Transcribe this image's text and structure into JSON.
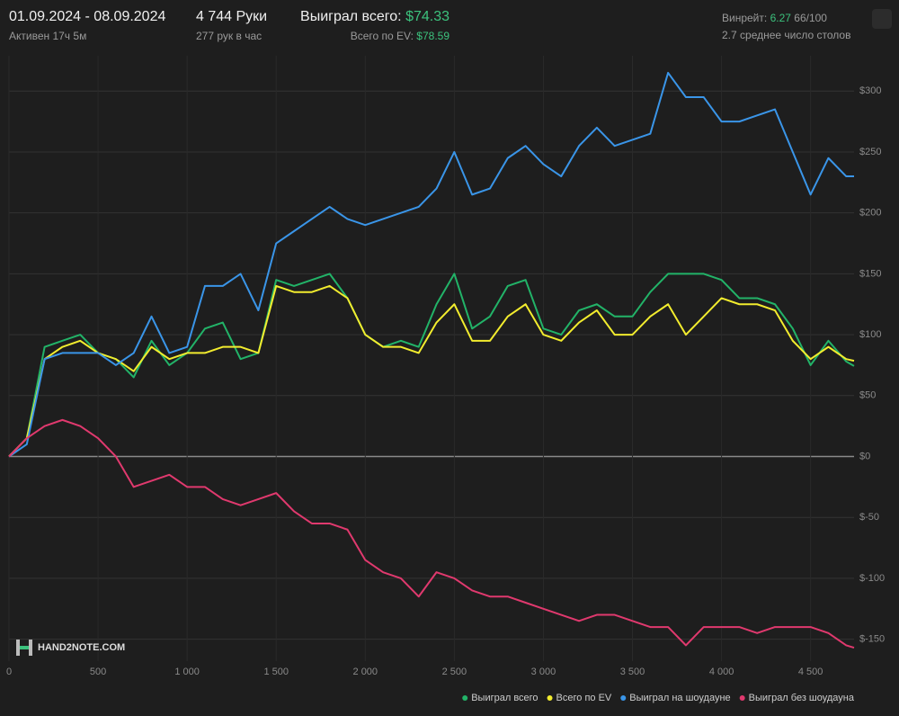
{
  "header": {
    "dates": "01.09.2024 - 08.09.2024",
    "active": "Активен 17ч 5м",
    "hands": "4 744 Руки",
    "rate": "277 рук в час",
    "won_label": "Выиграл всего:",
    "won_value": "$74.33",
    "ev_label": "Всего по EV:",
    "ev_value": "$78.59",
    "winrate_label": "Винрейт:",
    "winrate_value": "6.27",
    "winrate_unit": "66/100",
    "tables": "2.7 среднее число столов"
  },
  "logo": "HAND2NOTE.COM",
  "chart_data": {
    "type": "line",
    "x": [
      0,
      100,
      200,
      300,
      400,
      500,
      600,
      700,
      800,
      900,
      1000,
      1100,
      1200,
      1300,
      1400,
      1500,
      1600,
      1700,
      1800,
      1900,
      2000,
      2100,
      2200,
      2300,
      2400,
      2500,
      2600,
      2700,
      2800,
      2900,
      3000,
      3100,
      3200,
      3300,
      3400,
      3500,
      3600,
      3700,
      3800,
      3900,
      4000,
      4100,
      4200,
      4300,
      4400,
      4500,
      4600,
      4700,
      4744
    ],
    "series": [
      {
        "name": "Выиграл всего",
        "color": "#22b368",
        "values": [
          0,
          15,
          90,
          95,
          100,
          85,
          80,
          65,
          95,
          75,
          85,
          105,
          110,
          80,
          85,
          145,
          140,
          145,
          150,
          130,
          100,
          90,
          95,
          90,
          125,
          150,
          105,
          115,
          140,
          145,
          105,
          100,
          120,
          125,
          115,
          115,
          135,
          150,
          150,
          150,
          145,
          130,
          130,
          125,
          105,
          75,
          95,
          78,
          74.33
        ]
      },
      {
        "name": "Всего по EV",
        "color": "#f2ec2e",
        "values": [
          0,
          15,
          80,
          90,
          95,
          85,
          80,
          70,
          90,
          80,
          85,
          85,
          90,
          90,
          85,
          140,
          135,
          135,
          140,
          130,
          100,
          90,
          90,
          85,
          110,
          125,
          95,
          95,
          115,
          125,
          100,
          95,
          110,
          120,
          100,
          100,
          115,
          125,
          100,
          115,
          130,
          125,
          125,
          120,
          95,
          80,
          90,
          80,
          78.59
        ]
      },
      {
        "name": "Выиграл на шоудауне",
        "color": "#3a95e8",
        "values": [
          0,
          10,
          80,
          85,
          85,
          85,
          75,
          85,
          115,
          85,
          90,
          140,
          140,
          150,
          120,
          175,
          185,
          195,
          205,
          195,
          190,
          195,
          200,
          205,
          220,
          250,
          215,
          220,
          245,
          255,
          240,
          230,
          255,
          270,
          255,
          260,
          265,
          315,
          295,
          295,
          275,
          275,
          280,
          285,
          250,
          215,
          245,
          230,
          230
        ]
      },
      {
        "name": "Выиграл без шоудауна",
        "color": "#e0396e",
        "values": [
          0,
          15,
          25,
          30,
          25,
          15,
          0,
          -25,
          -20,
          -15,
          -25,
          -25,
          -35,
          -40,
          -35,
          -30,
          -45,
          -55,
          -55,
          -60,
          -85,
          -95,
          -100,
          -115,
          -95,
          -100,
          -110,
          -115,
          -115,
          -120,
          -125,
          -130,
          -135,
          -130,
          -130,
          -135,
          -140,
          -140,
          -155,
          -140,
          -140,
          -140,
          -145,
          -140,
          -140,
          -140,
          -145,
          -155,
          -157
        ]
      }
    ],
    "xlim": [
      0,
      4744
    ],
    "ylim": [
      -168,
      329
    ],
    "xticks": [
      0,
      500,
      {
        "value": 1000,
        "label": "1 000"
      },
      {
        "value": 1500,
        "label": "1 500"
      },
      {
        "value": 2000,
        "label": "2 000"
      },
      {
        "value": 2500,
        "label": "2 500"
      },
      {
        "value": 3000,
        "label": "3 000"
      },
      {
        "value": 3500,
        "label": "3 500"
      },
      {
        "value": 4000,
        "label": "4 000"
      },
      {
        "value": 4500,
        "label": "4 500"
      }
    ],
    "yticks": [
      {
        "value": -150,
        "label": "$-150"
      },
      {
        "value": -100,
        "label": "$-100"
      },
      {
        "value": -50,
        "label": "$-50"
      },
      {
        "value": 0,
        "label": "$0"
      },
      {
        "value": 50,
        "label": "$50"
      },
      {
        "value": 100,
        "label": "$100"
      },
      {
        "value": 150,
        "label": "$150"
      },
      {
        "value": 200,
        "label": "$200"
      },
      {
        "value": 250,
        "label": "$250"
      },
      {
        "value": 300,
        "label": "$300"
      }
    ],
    "grid": true,
    "legend": "bottom-right"
  }
}
